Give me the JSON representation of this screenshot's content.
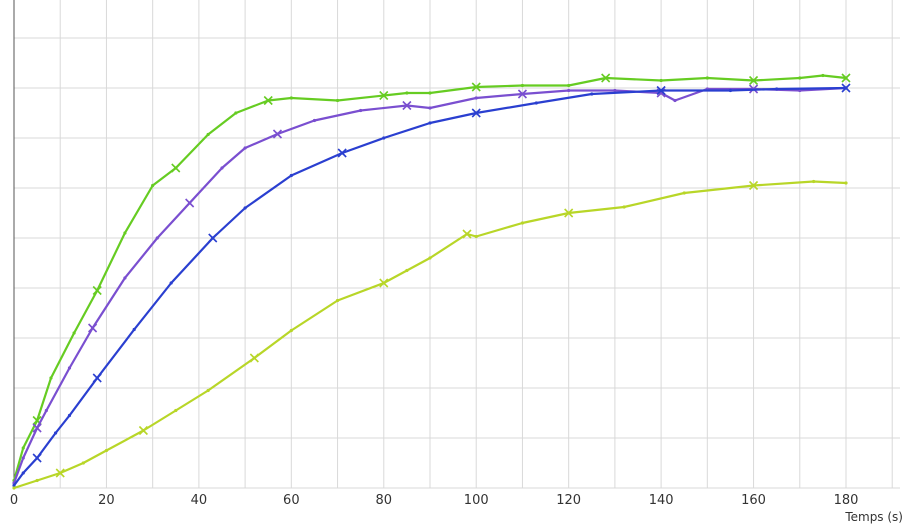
{
  "chart_data": {
    "type": "line",
    "title": "",
    "xlabel": "Temps (s)",
    "ylabel": "",
    "xlim": [
      0,
      180
    ],
    "ylim": [
      0,
      9
    ],
    "xticks": [
      0,
      20,
      40,
      60,
      80,
      100,
      120,
      140,
      160,
      180
    ],
    "grid": true,
    "legend": "none",
    "series": [
      {
        "color": "#66cc22",
        "marker": "x",
        "x": [
          0,
          2,
          5,
          8,
          13,
          18,
          24,
          30,
          35,
          42,
          48,
          55,
          60,
          70,
          80,
          85,
          90,
          100,
          110,
          120,
          128,
          140,
          150,
          160,
          170,
          175,
          180
        ],
        "y": [
          0.15,
          0.8,
          1.35,
          2.2,
          3.1,
          3.95,
          5.1,
          6.05,
          6.4,
          7.07,
          7.5,
          7.75,
          7.8,
          7.75,
          7.85,
          7.9,
          7.9,
          8.02,
          8.05,
          8.05,
          8.2,
          8.15,
          8.2,
          8.15,
          8.2,
          8.25,
          8.2
        ]
      },
      {
        "color": "#7a4fd0",
        "marker": "x",
        "x": [
          0,
          2,
          5,
          7,
          12,
          17,
          24,
          31,
          38,
          45,
          50,
          57,
          65,
          75,
          85,
          90,
          100,
          110,
          120,
          130,
          140,
          143,
          150,
          160,
          170,
          180
        ],
        "y": [
          0.1,
          0.6,
          1.2,
          1.55,
          2.4,
          3.2,
          4.2,
          5.0,
          5.7,
          6.4,
          6.8,
          7.08,
          7.35,
          7.55,
          7.65,
          7.6,
          7.8,
          7.88,
          7.95,
          7.95,
          7.9,
          7.75,
          7.98,
          7.98,
          7.95,
          8.0
        ]
      },
      {
        "color": "#2a3fd0",
        "marker": "x",
        "x": [
          0,
          2,
          5,
          9,
          12,
          18,
          26,
          34,
          43,
          50,
          60,
          71,
          80,
          90,
          100,
          113,
          125,
          140,
          155,
          165,
          180
        ],
        "y": [
          0.05,
          0.3,
          0.6,
          1.1,
          1.45,
          2.2,
          3.17,
          4.1,
          5.0,
          5.6,
          6.25,
          6.7,
          7.0,
          7.3,
          7.5,
          7.7,
          7.88,
          7.95,
          7.95,
          7.98,
          8.0
        ]
      },
      {
        "color": "#b8d628",
        "marker": "x",
        "x": [
          0,
          5,
          10,
          15,
          20,
          28,
          35,
          42,
          52,
          60,
          70,
          80,
          85,
          90,
          98,
          100,
          110,
          120,
          132,
          145,
          160,
          173,
          180
        ],
        "y": [
          0.0,
          0.15,
          0.3,
          0.5,
          0.75,
          1.15,
          1.55,
          1.95,
          2.6,
          3.15,
          3.75,
          4.1,
          4.35,
          4.6,
          5.08,
          5.03,
          5.3,
          5.5,
          5.62,
          5.9,
          6.05,
          6.13,
          6.1
        ]
      }
    ]
  }
}
